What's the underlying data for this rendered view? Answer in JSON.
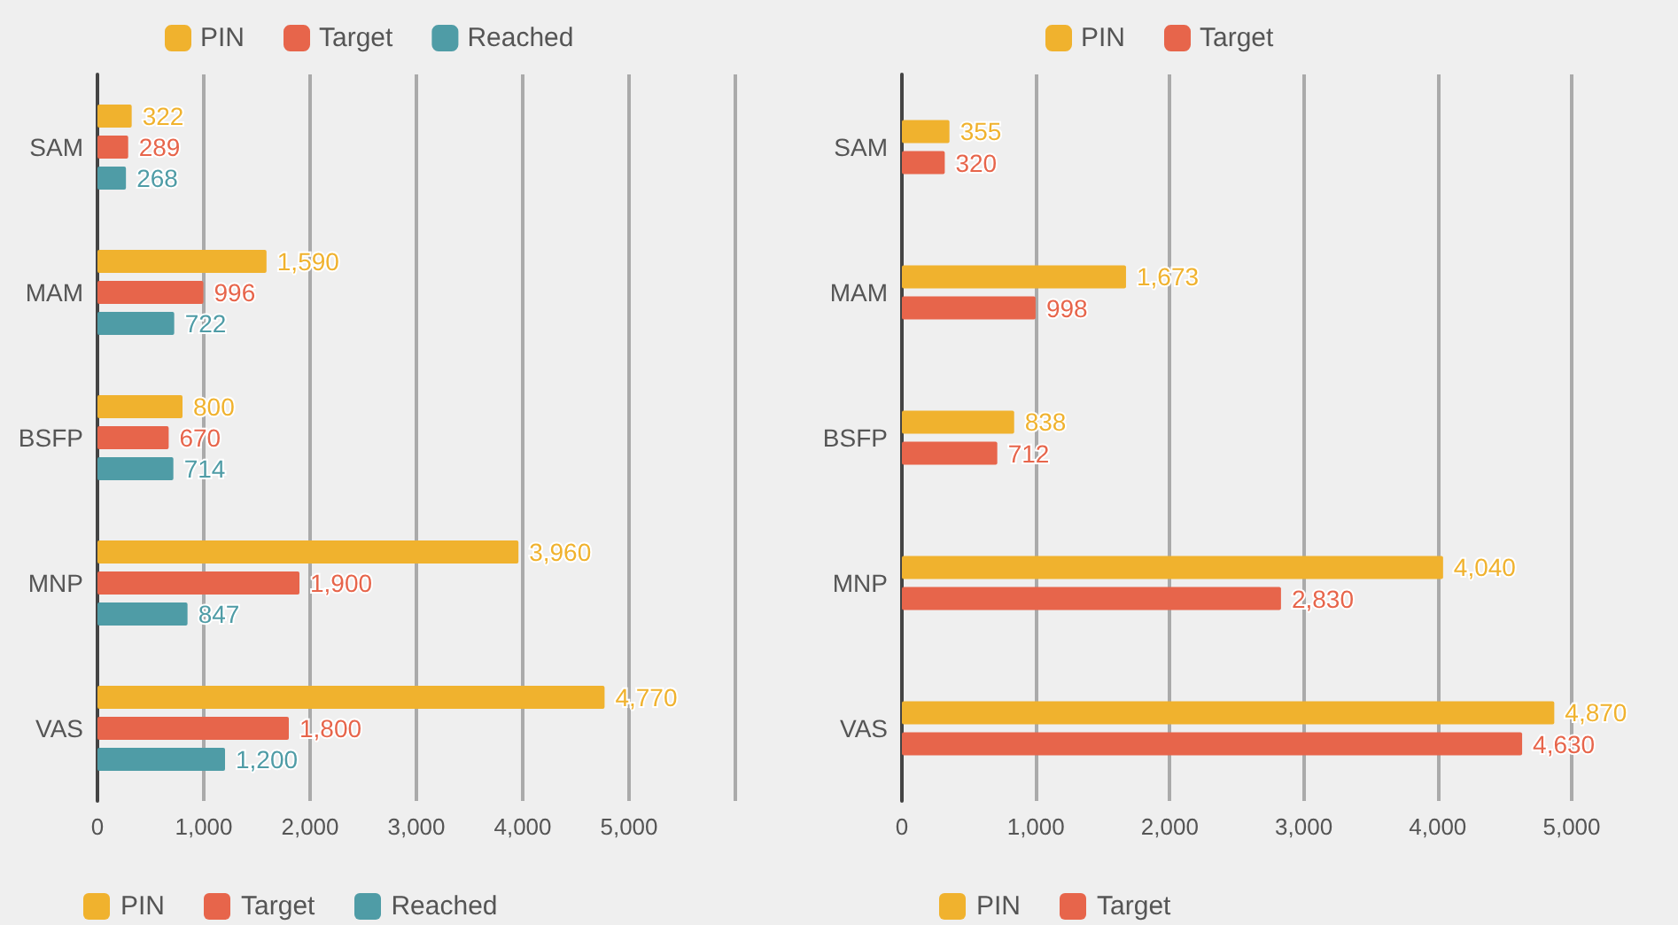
{
  "chart_data": [
    {
      "type": "bar",
      "orientation": "horizontal",
      "categories": [
        "SAM",
        "MAM",
        "BSFP",
        "MNP",
        "VAS"
      ],
      "series": [
        {
          "name": "PIN",
          "color": "#f0b22e",
          "values": [
            322,
            1590,
            800,
            3960,
            4770
          ],
          "value_labels": [
            "322",
            "1,590",
            "800",
            "3,960",
            "4,770"
          ]
        },
        {
          "name": "Target",
          "color": "#e7654b",
          "values": [
            289,
            996,
            670,
            1900,
            1800
          ],
          "value_labels": [
            "289",
            "996",
            "670",
            "1,900",
            "1,800"
          ]
        },
        {
          "name": "Reached",
          "color": "#4f9ca6",
          "values": [
            268,
            722,
            714,
            847,
            1200
          ],
          "value_labels": [
            "268",
            "722",
            "714",
            "847",
            "1,200"
          ]
        }
      ],
      "xlim": [
        0,
        6000
      ],
      "xticks": [
        {
          "value": 0,
          "label": "0"
        },
        {
          "value": 1000,
          "label": "1,000"
        },
        {
          "value": 2000,
          "label": "2,000"
        },
        {
          "value": 3000,
          "label": "3,000"
        },
        {
          "value": 4000,
          "label": "4,000"
        },
        {
          "value": 5000,
          "label": "5,000"
        },
        {
          "value": 6000,
          "label": null
        }
      ],
      "grid": "x",
      "legend": [
        "top",
        "bottom"
      ]
    },
    {
      "type": "bar",
      "orientation": "horizontal",
      "categories": [
        "SAM",
        "MAM",
        "BSFP",
        "MNP",
        "VAS"
      ],
      "series": [
        {
          "name": "PIN",
          "color": "#f0b22e",
          "values": [
            355,
            1673,
            838,
            4040,
            4870
          ],
          "value_labels": [
            "355",
            "1,673",
            "838",
            "4,040",
            "4,870"
          ]
        },
        {
          "name": "Target",
          "color": "#e7654b",
          "values": [
            320,
            998,
            712,
            2830,
            4630
          ],
          "value_labels": [
            "320",
            "998",
            "712",
            "2,830",
            "4,630"
          ]
        }
      ],
      "xlim": [
        0,
        5000
      ],
      "xticks": [
        {
          "value": 0,
          "label": "0"
        },
        {
          "value": 1000,
          "label": "1,000"
        },
        {
          "value": 2000,
          "label": "2,000"
        },
        {
          "value": 3000,
          "label": "3,000"
        },
        {
          "value": 4000,
          "label": "4,000"
        },
        {
          "value": 5000,
          "label": "5,000"
        }
      ],
      "grid": "x",
      "legend": [
        "top",
        "bottom"
      ]
    }
  ]
}
